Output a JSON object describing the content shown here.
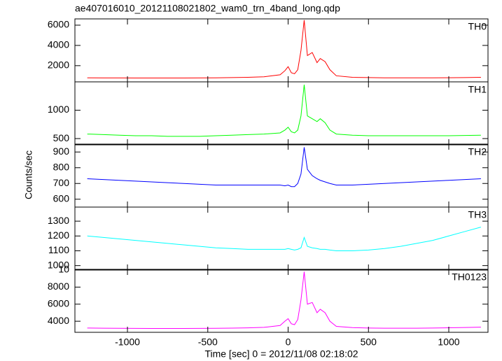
{
  "chart_data": [
    {
      "type": "line",
      "title": "ae407016010_20121108021802_wam0_trn_4band_long.qdp",
      "name": "TH0",
      "color": "#ff0000",
      "x": [
        -1250,
        -1150,
        -1050,
        -950,
        -850,
        -750,
        -650,
        -550,
        -450,
        -350,
        -250,
        -150,
        -50,
        -20,
        0,
        20,
        40,
        60,
        80,
        100,
        120,
        150,
        180,
        200,
        230,
        260,
        300,
        400,
        500,
        600,
        700,
        800,
        900,
        1000,
        1100,
        1200
      ],
      "values": [
        800,
        790,
        790,
        780,
        780,
        780,
        780,
        790,
        800,
        820,
        850,
        900,
        1100,
        1500,
        1900,
        1300,
        1200,
        1600,
        3500,
        6500,
        3000,
        3300,
        2300,
        2700,
        2400,
        1600,
        1000,
        850,
        820,
        800,
        800,
        800,
        800,
        810,
        820,
        850
      ],
      "xlim": [
        -1327,
        1244
      ],
      "xticks": [
        -1000,
        -500,
        0,
        500,
        1000
      ],
      "ylim": [
        400,
        6620
      ],
      "yticks": [
        2000,
        4000,
        6000
      ]
    },
    {
      "type": "line",
      "name": "TH1",
      "color": "#00ff00",
      "x": [
        -1250,
        -1150,
        -1050,
        -950,
        -850,
        -750,
        -650,
        -550,
        -450,
        -350,
        -250,
        -150,
        -50,
        -20,
        0,
        20,
        40,
        60,
        80,
        100,
        120,
        150,
        180,
        200,
        230,
        260,
        300,
        400,
        500,
        600,
        700,
        800,
        900,
        1000,
        1100,
        1200
      ],
      "values": [
        580,
        570,
        560,
        550,
        550,
        540,
        540,
        540,
        550,
        560,
        570,
        580,
        600,
        650,
        700,
        620,
        600,
        650,
        900,
        1450,
        900,
        850,
        800,
        850,
        780,
        650,
        580,
        560,
        550,
        550,
        550,
        550,
        550,
        550,
        555,
        560
      ],
      "xlim": [
        -1327,
        1244
      ],
      "xticks": [
        -1000,
        -500,
        0,
        500,
        1000
      ],
      "ylim": [
        390,
        1500
      ],
      "yticks": [
        500,
        1000
      ]
    },
    {
      "type": "line",
      "name": "TH2",
      "color": "#0000ff",
      "y_label": "Counts/sec",
      "x": [
        -1250,
        -1150,
        -1050,
        -950,
        -850,
        -750,
        -650,
        -550,
        -450,
        -350,
        -250,
        -150,
        -50,
        -20,
        0,
        20,
        40,
        60,
        80,
        100,
        120,
        150,
        180,
        200,
        230,
        260,
        300,
        400,
        500,
        600,
        700,
        800,
        900,
        1000,
        1100,
        1200
      ],
      "values": [
        730,
        725,
        720,
        715,
        710,
        705,
        700,
        695,
        690,
        690,
        690,
        690,
        690,
        685,
        690,
        680,
        680,
        700,
        760,
        930,
        790,
        750,
        730,
        720,
        710,
        700,
        690,
        690,
        695,
        700,
        705,
        710,
        715,
        720,
        725,
        730
      ],
      "xlim": [
        -1327,
        1244
      ],
      "xticks": [
        -1000,
        -500,
        0,
        500,
        1000
      ],
      "ylim": [
        550,
        950
      ],
      "yticks": [
        600,
        700,
        800,
        900
      ]
    },
    {
      "type": "line",
      "name": "TH3",
      "color": "#00ffff",
      "x": [
        -1250,
        -1150,
        -1050,
        -950,
        -850,
        -750,
        -650,
        -550,
        -450,
        -350,
        -250,
        -150,
        -50,
        -20,
        0,
        20,
        40,
        60,
        80,
        100,
        120,
        150,
        180,
        200,
        230,
        260,
        300,
        400,
        500,
        600,
        700,
        800,
        900,
        1000,
        1100,
        1200
      ],
      "values": [
        1200,
        1190,
        1180,
        1170,
        1160,
        1150,
        1140,
        1130,
        1120,
        1115,
        1110,
        1110,
        1110,
        1110,
        1115,
        1110,
        1105,
        1110,
        1120,
        1190,
        1130,
        1120,
        1115,
        1110,
        1110,
        1105,
        1100,
        1100,
        1105,
        1115,
        1130,
        1150,
        1170,
        1200,
        1230,
        1260
      ],
      "xlim": [
        -1327,
        1244
      ],
      "xticks": [
        -1000,
        -500,
        0,
        500,
        1000
      ],
      "ylim": [
        970,
        1395
      ],
      "yticks": [
        1000,
        1100,
        1200,
        1300
      ]
    },
    {
      "type": "line",
      "name": "TH0123",
      "color": "#ff00ff",
      "x_label": "Time [sec] 0 = 2012/11/08 02:18:02",
      "x": [
        -1250,
        -1150,
        -1050,
        -950,
        -850,
        -750,
        -650,
        -550,
        -450,
        -350,
        -250,
        -150,
        -50,
        -20,
        0,
        20,
        40,
        60,
        80,
        100,
        120,
        150,
        180,
        200,
        230,
        260,
        300,
        400,
        500,
        600,
        700,
        800,
        900,
        1000,
        1100,
        1200
      ],
      "values": [
        3200,
        3180,
        3170,
        3160,
        3150,
        3150,
        3150,
        3160,
        3170,
        3190,
        3220,
        3280,
        3500,
        4000,
        4300,
        3700,
        3600,
        4200,
        6500,
        9800,
        6000,
        6200,
        5000,
        5400,
        5000,
        4000,
        3400,
        3250,
        3200,
        3180,
        3180,
        3180,
        3200,
        3230,
        3260,
        3300
      ],
      "xlim": [
        -1327,
        1244
      ],
      "xticks": [
        -1000,
        -500,
        0,
        500,
        1000
      ],
      "ylim": [
        2700,
        10080
      ],
      "yticks": [
        4000,
        6000,
        8000,
        {
          "value": 10000,
          "label": "10"
        }
      ]
    }
  ]
}
